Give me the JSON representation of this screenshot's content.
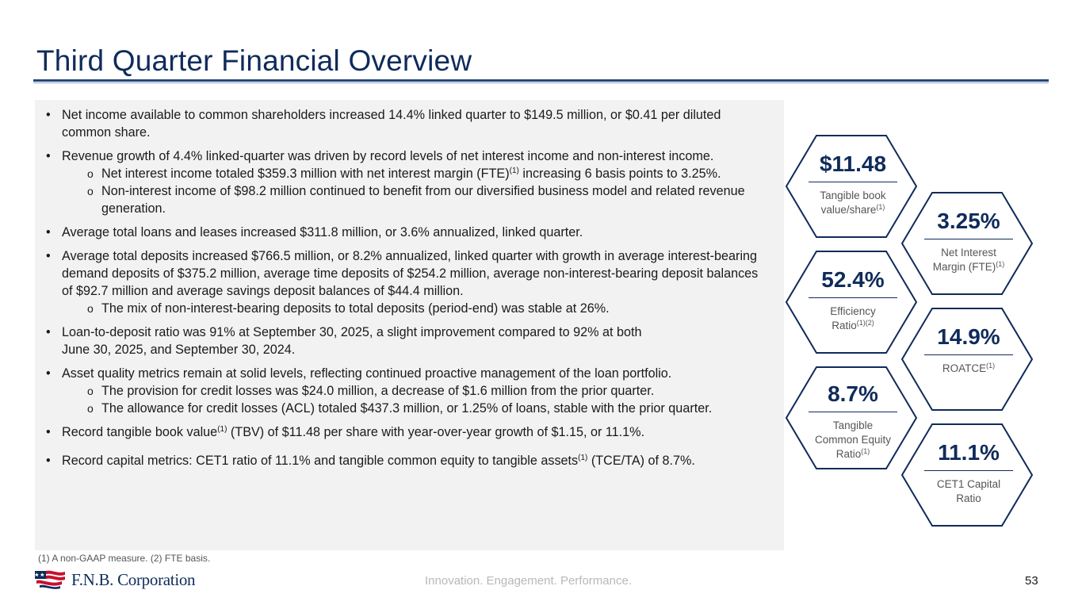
{
  "header": {
    "title": "Third Quarter Financial Overview"
  },
  "bullets": {
    "b1": "Net income available to common shareholders increased 14.4% linked quarter to $149.5 million, or $0.41 per diluted common share.",
    "b2": "Revenue growth of 4.4% linked-quarter was driven by record levels of net interest income and non-interest income.",
    "b2_s1_a": "Net interest income totaled $359.3 million with net interest margin (FTE)",
    "b2_s1_sup": "(1)",
    "b2_s1_b": " increasing 6 basis points to 3.25%.",
    "b2_s2": "Non-interest income of $98.2 million continued to benefit from our diversified business model and related revenue generation.",
    "b3": "Average total loans and leases increased $311.8 million, or 3.6% annualized, linked quarter.",
    "b4": "Average total deposits increased $766.5 million, or 8.2% annualized, linked quarter with growth in average interest-bearing demand deposits of $375.2 million, average time deposits of $254.2 million, average non-interest-bearing deposit balances of $92.7 million and average savings deposit balances of $44.4 million.",
    "b4_s1": "The mix of non-interest-bearing deposits to total deposits (period-end) was stable at 26%.",
    "b5_l1": "Loan-to-deposit ratio was 91% at September 30, 2025, a slight improvement compared to 92% at both",
    "b5_l2": "June 30, 2025, and September 30, 2024.",
    "b6": "Asset quality metrics remain at solid levels, reflecting continued proactive management of the loan portfolio.",
    "b6_s1": "The provision for credit losses was $24.0 million, a decrease of $1.6 million from the prior quarter.",
    "b6_s2": "The allowance for credit losses (ACL) totaled $437.3 million, or 1.25% of loans, stable with the prior quarter.",
    "b7_a": "Record tangible book value",
    "b7_sup": "(1)",
    "b7_b": " (TBV) of $11.48 per share with year-over-year growth of $1.15, or 11.1%.",
    "b8_a": "Record capital metrics: CET1 ratio of 11.1% and tangible common equity to tangible assets",
    "b8_sup": "(1)",
    "b8_b": " (TCE/TA) of 8.7%."
  },
  "metrics": {
    "tbv": {
      "value": "$11.48",
      "label_l1": "Tangible book",
      "label_l2": "value/share",
      "sup": "(1)"
    },
    "nim": {
      "value": "3.25%",
      "label_l1": "Net Interest",
      "label_l2": "Margin (FTE)",
      "sup": "(1)"
    },
    "eff": {
      "value": "52.4%",
      "label_l1": "Efficiency",
      "label_l2": "Ratio",
      "sup": "(1)(2)"
    },
    "roatce": {
      "value": "14.9%",
      "label_l1": "ROATCE",
      "sup": "(1)"
    },
    "tce": {
      "value": "8.7%",
      "label_l1": "Tangible",
      "label_l2": "Common Equity",
      "label_l3": "Ratio",
      "sup": "(1)"
    },
    "cet1": {
      "value": "11.1%",
      "label_l1": "CET1 Capital",
      "label_l2": "Ratio"
    }
  },
  "footer": {
    "footnote": "(1) A non-GAAP measure. (2) FTE basis.",
    "tagline": "Innovation. Engagement. Performance.",
    "page_number": "53",
    "logo_text": "F.N.B. Corporation"
  },
  "colors": {
    "navy": "#0f2b5b",
    "panel": "#f2f2f2",
    "rule": "#26477a",
    "flag_red": "#c8102e"
  }
}
